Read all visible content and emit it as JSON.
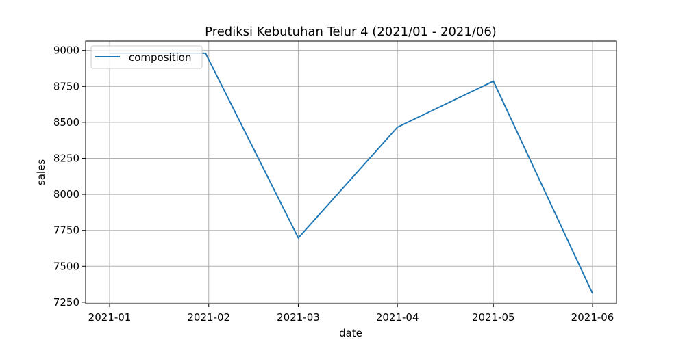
{
  "chart_data": {
    "type": "line",
    "title": "Prediksi Kebutuhan Telur 4 (2021/01 - 2021/06)",
    "xlabel": "date",
    "ylabel": "sales",
    "x": [
      "2021-01-01",
      "2021-01-31",
      "2021-03-01",
      "2021-04-01",
      "2021-05-01",
      "2021-06-01"
    ],
    "x_ticks": [
      "2021-01-01",
      "2021-02-01",
      "2021-03-01",
      "2021-04-01",
      "2021-05-01",
      "2021-06-01"
    ],
    "x_tick_labels": [
      "2021-01",
      "2021-02",
      "2021-03",
      "2021-04",
      "2021-05",
      "2021-06"
    ],
    "y_ticks": [
      7250,
      7500,
      7750,
      8000,
      8250,
      8500,
      8750,
      9000
    ],
    "ylim": [
      7240,
      9065
    ],
    "series": [
      {
        "name": "composition",
        "color": "#1f77b4",
        "values": [
          8980,
          8980,
          7697,
          8466,
          8786,
          7312
        ]
      }
    ],
    "grid": true,
    "legend_position": "upper left"
  }
}
